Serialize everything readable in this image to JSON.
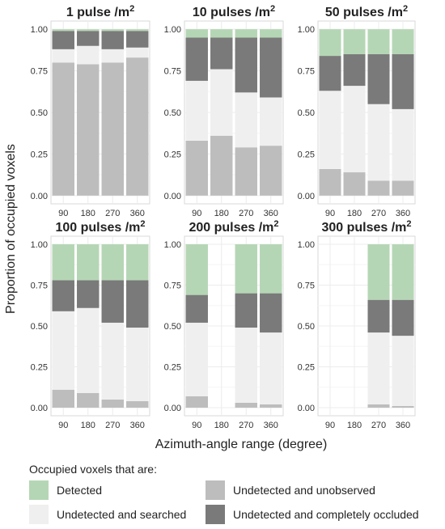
{
  "chart_data": {
    "type": "bar",
    "stacked": true,
    "xlabel": "Azimuth-angle range (degree)",
    "ylabel": "Proportion of occupied voxels",
    "categories": [
      "90",
      "180",
      "270",
      "360"
    ],
    "ylim": [
      0,
      1
    ],
    "yticks": [
      "0.00",
      "0.25",
      "0.50",
      "0.75",
      "1.00"
    ],
    "grid": true,
    "legend": {
      "title": "Occupied voxels that are:",
      "position": "bottom",
      "items": [
        {
          "key": "detected",
          "label": "Detected",
          "color": "#b5d6b5"
        },
        {
          "key": "unobserved",
          "label": "Undetected and unobserved",
          "color": "#bdbdbd"
        },
        {
          "key": "searched",
          "label": "Undetected and searched",
          "color": "#efefef"
        },
        {
          "key": "occluded",
          "label": "Undetected and completely occluded",
          "color": "#7a7a7a"
        }
      ]
    },
    "panels": [
      {
        "title_main": "1 pulse /m",
        "title_sup": "2",
        "bars": [
          {
            "unobserved": 0.8,
            "searched": 0.08,
            "occluded": 0.11,
            "detected": 0.01
          },
          {
            "unobserved": 0.79,
            "searched": 0.11,
            "occluded": 0.09,
            "detected": 0.01
          },
          {
            "unobserved": 0.8,
            "searched": 0.08,
            "occluded": 0.11,
            "detected": 0.01
          },
          {
            "unobserved": 0.83,
            "searched": 0.06,
            "occluded": 0.1,
            "detected": 0.01
          }
        ]
      },
      {
        "title_main": "10 pulses /m",
        "title_sup": "2",
        "bars": [
          {
            "unobserved": 0.33,
            "searched": 0.36,
            "occluded": 0.26,
            "detected": 0.05
          },
          {
            "unobserved": 0.36,
            "searched": 0.4,
            "occluded": 0.19,
            "detected": 0.05
          },
          {
            "unobserved": 0.29,
            "searched": 0.33,
            "occluded": 0.33,
            "detected": 0.05
          },
          {
            "unobserved": 0.3,
            "searched": 0.29,
            "occluded": 0.36,
            "detected": 0.05
          }
        ]
      },
      {
        "title_main": "50 pulses /m",
        "title_sup": "2",
        "bars": [
          {
            "unobserved": 0.16,
            "searched": 0.47,
            "occluded": 0.21,
            "detected": 0.16
          },
          {
            "unobserved": 0.14,
            "searched": 0.52,
            "occluded": 0.19,
            "detected": 0.15
          },
          {
            "unobserved": 0.09,
            "searched": 0.46,
            "occluded": 0.3,
            "detected": 0.15
          },
          {
            "unobserved": 0.09,
            "searched": 0.43,
            "occluded": 0.33,
            "detected": 0.15
          }
        ]
      },
      {
        "title_main": "100 pulses /m",
        "title_sup": "2",
        "bars": [
          {
            "unobserved": 0.11,
            "searched": 0.48,
            "occluded": 0.19,
            "detected": 0.22
          },
          {
            "unobserved": 0.09,
            "searched": 0.52,
            "occluded": 0.17,
            "detected": 0.22
          },
          {
            "unobserved": 0.05,
            "searched": 0.47,
            "occluded": 0.26,
            "detected": 0.22
          },
          {
            "unobserved": 0.04,
            "searched": 0.45,
            "occluded": 0.29,
            "detected": 0.22
          }
        ]
      },
      {
        "title_main": "200 pulses /m",
        "title_sup": "2",
        "bars": [
          {
            "unobserved": 0.07,
            "searched": 0.45,
            "occluded": 0.17,
            "detected": 0.31
          },
          null,
          {
            "unobserved": 0.03,
            "searched": 0.46,
            "occluded": 0.21,
            "detected": 0.3
          },
          {
            "unobserved": 0.02,
            "searched": 0.44,
            "occluded": 0.24,
            "detected": 0.3
          }
        ]
      },
      {
        "title_main": "300 pulses /m",
        "title_sup": "2",
        "bars": [
          null,
          null,
          {
            "unobserved": 0.02,
            "searched": 0.44,
            "occluded": 0.2,
            "detected": 0.34
          },
          {
            "unobserved": 0.01,
            "searched": 0.43,
            "occluded": 0.22,
            "detected": 0.34
          }
        ]
      }
    ]
  }
}
